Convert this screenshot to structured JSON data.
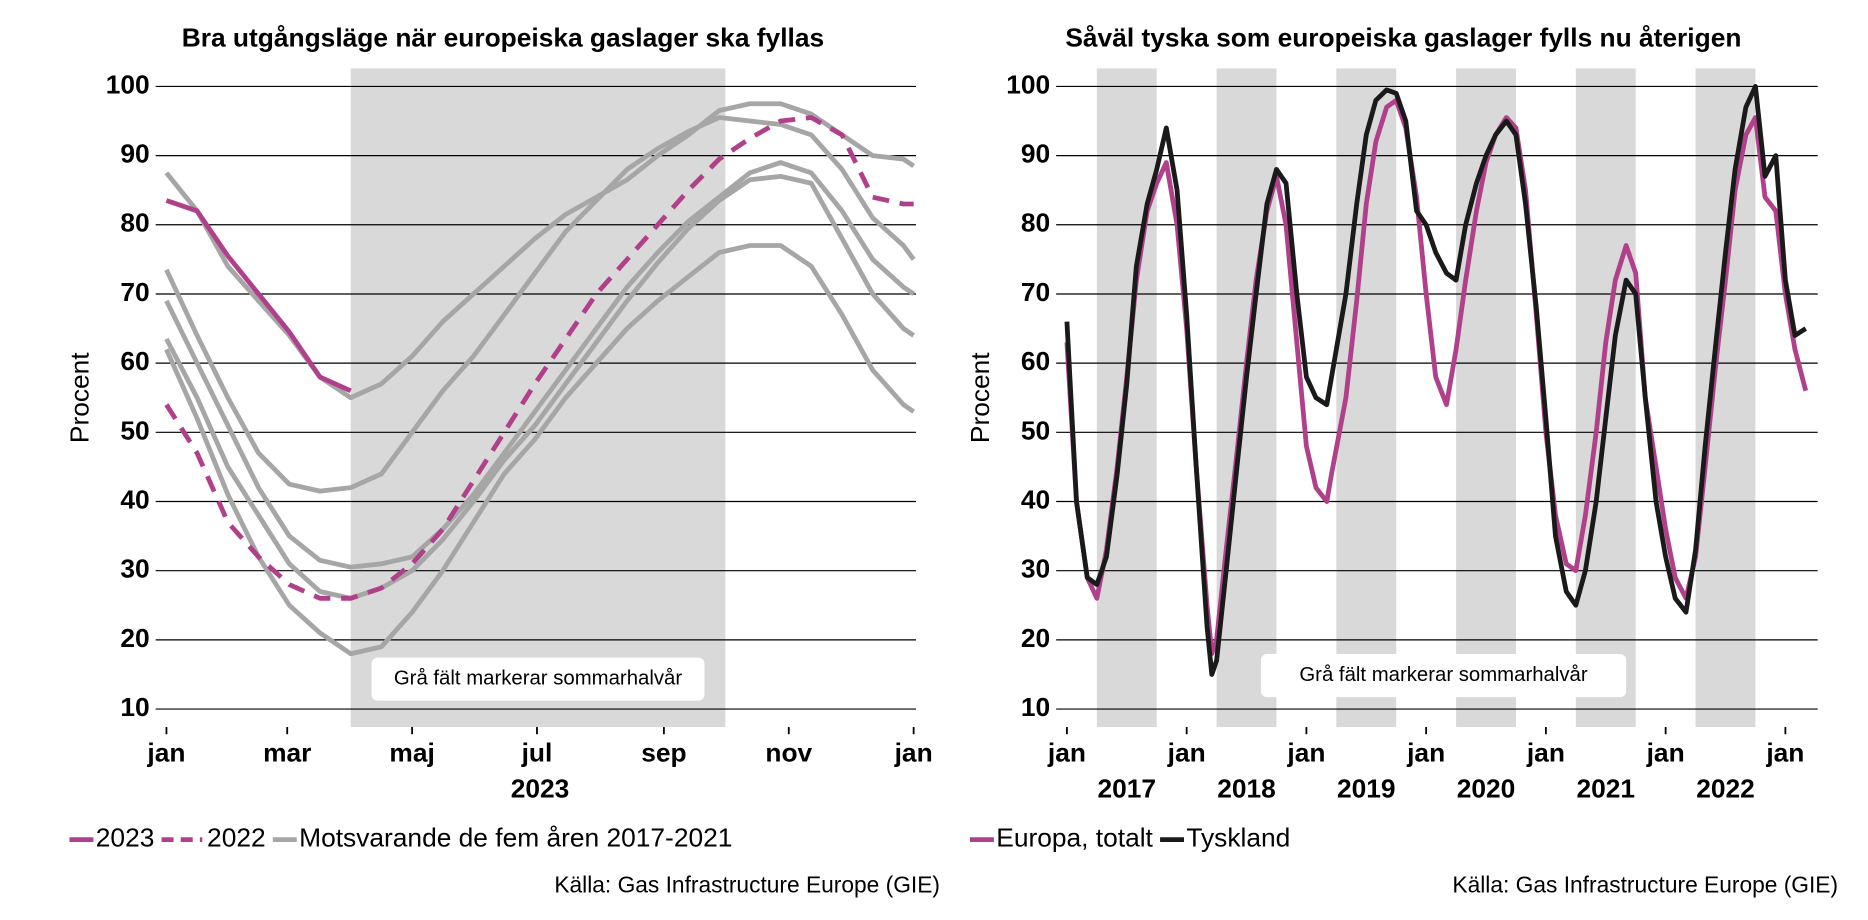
{
  "chart_data": [
    {
      "type": "line",
      "title": "Bra utgångsläge när europeiska gaslager ska fyllas",
      "ylabel": "Procent",
      "annotation": "Grå fält markerar sommarhalvår",
      "source": "Källa: Gas Infrastructure Europe (GIE)",
      "xlim": [
        0,
        365
      ],
      "ylim": [
        7.4,
        102.6
      ],
      "grid": true,
      "xticks": [
        {
          "value": 0,
          "label": "jan"
        },
        {
          "value": 59,
          "label": "mar"
        },
        {
          "value": 120,
          "label": "maj"
        },
        {
          "value": 181,
          "label": "jul"
        },
        {
          "value": 243,
          "label": "sep"
        },
        {
          "value": 304,
          "label": "nov"
        },
        {
          "value": 365,
          "label": "jan"
        }
      ],
      "x_labels": [
        {
          "value": 182.5,
          "label": "2023"
        }
      ],
      "yticks": [
        10,
        20,
        30,
        40,
        50,
        60,
        70,
        80,
        90,
        100
      ],
      "shaded": [
        [
          90,
          273
        ]
      ],
      "x": [
        0,
        15,
        30,
        45,
        60,
        75,
        90,
        105,
        120,
        135,
        150,
        165,
        180,
        195,
        210,
        225,
        240,
        255,
        270,
        285,
        300,
        315,
        330,
        345,
        360,
        365
      ],
      "series": [
        {
          "name": "2023",
          "color": "#b0408a",
          "dashed": false,
          "values": [
            83.5,
            82,
            75.5,
            70,
            64.5,
            58,
            56,
            null,
            null,
            null,
            null,
            null,
            null,
            null,
            null,
            null,
            null,
            null,
            null,
            null,
            null,
            null,
            null,
            null,
            null,
            null
          ]
        },
        {
          "name": "2022",
          "color": "#b0408a",
          "dashed": true,
          "values": [
            54,
            47,
            37,
            32,
            28,
            26,
            26,
            27.5,
            31,
            36,
            43,
            50,
            57,
            63.5,
            70,
            75,
            80,
            85,
            89.5,
            92.5,
            95,
            95.5,
            93,
            84,
            83,
            83
          ]
        }
      ],
      "reference": {
        "name": "Motsvarande de fem åren 2017-2021",
        "color": "#a6a6a6",
        "lines": [
          [
            87.5,
            82,
            74,
            69,
            64,
            58,
            55,
            57,
            61,
            66,
            70,
            74,
            78,
            81.5,
            84,
            86.5,
            90,
            93,
            96.5,
            97.5,
            97.5,
            96,
            93,
            90,
            89.5,
            88.5
          ],
          [
            73.5,
            64,
            55,
            47,
            42.5,
            41.5,
            42,
            44,
            50,
            56,
            61,
            67,
            73,
            79,
            83.5,
            88,
            91,
            93.5,
            95.5,
            95,
            94.5,
            93,
            88,
            81,
            77,
            75
          ],
          [
            69,
            60,
            51,
            42,
            35,
            31.5,
            30.5,
            31,
            32,
            36,
            41,
            47,
            53,
            59,
            65,
            71,
            76,
            80.5,
            84,
            87.5,
            89,
            87.5,
            82,
            75,
            71,
            70
          ],
          [
            63.5,
            55,
            45,
            38,
            31,
            27,
            26,
            27.5,
            30,
            34.5,
            40,
            46,
            51,
            57,
            63,
            69,
            74.5,
            79.5,
            83.5,
            86.5,
            87,
            86,
            78,
            70,
            65,
            64
          ],
          [
            62,
            52,
            41,
            32,
            25,
            21,
            18,
            19,
            24,
            30,
            37,
            44,
            49,
            55,
            60,
            65,
            69,
            72.5,
            76,
            77,
            77,
            74,
            67,
            59,
            54,
            53
          ]
        ]
      }
    },
    {
      "type": "line",
      "title": "Såväl tyska som europeiska gaslager fylls nu återigen",
      "ylabel": "Procent",
      "annotation": "Grå fält markerar sommarhalvår",
      "source": "Källa: Gas Infrastructure Europe (GIE)",
      "xlim": [
        2017,
        2023.25
      ],
      "ylim": [
        7.4,
        102.6
      ],
      "grid": true,
      "xticks": [
        {
          "value": 2017,
          "label": "jan"
        },
        {
          "value": 2018,
          "label": "jan"
        },
        {
          "value": 2019,
          "label": "jan"
        },
        {
          "value": 2020,
          "label": "jan"
        },
        {
          "value": 2021,
          "label": "jan"
        },
        {
          "value": 2022,
          "label": "jan"
        },
        {
          "value": 2023,
          "label": "jan"
        }
      ],
      "x_labels": [
        {
          "value": 2017.5,
          "label": "2017"
        },
        {
          "value": 2018.5,
          "label": "2018"
        },
        {
          "value": 2019.5,
          "label": "2019"
        },
        {
          "value": 2020.5,
          "label": "2020"
        },
        {
          "value": 2021.5,
          "label": "2021"
        },
        {
          "value": 2022.5,
          "label": "2022"
        }
      ],
      "yticks": [
        10,
        20,
        30,
        40,
        50,
        60,
        70,
        80,
        90,
        100
      ],
      "shaded": [
        [
          2017.25,
          2017.75
        ],
        [
          2018.25,
          2018.75
        ],
        [
          2019.25,
          2019.75
        ],
        [
          2020.25,
          2020.75
        ],
        [
          2021.25,
          2021.75
        ],
        [
          2022.25,
          2022.75
        ]
      ],
      "x": [
        2017,
        2017.08,
        2017.17,
        2017.25,
        2017.33,
        2017.42,
        2017.5,
        2017.58,
        2017.67,
        2017.75,
        2017.83,
        2017.92,
        2018,
        2018.08,
        2018.17,
        2018.21,
        2018.25,
        2018.33,
        2018.42,
        2018.5,
        2018.58,
        2018.67,
        2018.75,
        2018.83,
        2018.92,
        2019,
        2019.08,
        2019.17,
        2019.21,
        2019.33,
        2019.42,
        2019.5,
        2019.58,
        2019.67,
        2019.75,
        2019.83,
        2019.92,
        2020,
        2020.08,
        2020.17,
        2020.25,
        2020.33,
        2020.42,
        2020.5,
        2020.58,
        2020.67,
        2020.75,
        2020.83,
        2020.92,
        2021,
        2021.08,
        2021.17,
        2021.25,
        2021.33,
        2021.42,
        2021.5,
        2021.58,
        2021.67,
        2021.75,
        2021.83,
        2021.92,
        2022,
        2022.08,
        2022.17,
        2022.25,
        2022.33,
        2022.42,
        2022.5,
        2022.58,
        2022.67,
        2022.75,
        2022.83,
        2022.92,
        2023,
        2023.08,
        2023.17
      ],
      "series": [
        {
          "name": "Tyskland",
          "color": "#1a1a1a",
          "dashed": false,
          "values": [
            66,
            40,
            29,
            28,
            32,
            44,
            57,
            74,
            83,
            88,
            94,
            85,
            67,
            45,
            22,
            15,
            17,
            30,
            45,
            58,
            70,
            83,
            88,
            86,
            70,
            58,
            55,
            54,
            58,
            70,
            83,
            93,
            98,
            99.5,
            99,
            95,
            82,
            80,
            76,
            73,
            72,
            80,
            86,
            90,
            93,
            95,
            93,
            83,
            68,
            52,
            35,
            27,
            25,
            30,
            40,
            52,
            64,
            72,
            70,
            55,
            40,
            32,
            26,
            24,
            33,
            48,
            63,
            76,
            88,
            97,
            100,
            87,
            90,
            72,
            64,
            65
          ]
        },
        {
          "name": "Europa, totalt",
          "color": "#b0408a",
          "dashed": false,
          "values": [
            63,
            40,
            29,
            26,
            33,
            45,
            58,
            72,
            82,
            86,
            89,
            80,
            65,
            45,
            25,
            18,
            20,
            33,
            47,
            60,
            72,
            82,
            87,
            80,
            63,
            48,
            42,
            40,
            44,
            55,
            69,
            83,
            92,
            97,
            98,
            94,
            84,
            70,
            58,
            54,
            62,
            72,
            82,
            89,
            93,
            95.5,
            94,
            85,
            67,
            50,
            38,
            31,
            30,
            38,
            50,
            63,
            72,
            77,
            73,
            55,
            45,
            36,
            29,
            26,
            32,
            45,
            60,
            72,
            85,
            93,
            95.5,
            84,
            82,
            70,
            62,
            56
          ]
        }
      ],
      "legend_order": [
        1,
        0
      ]
    }
  ]
}
